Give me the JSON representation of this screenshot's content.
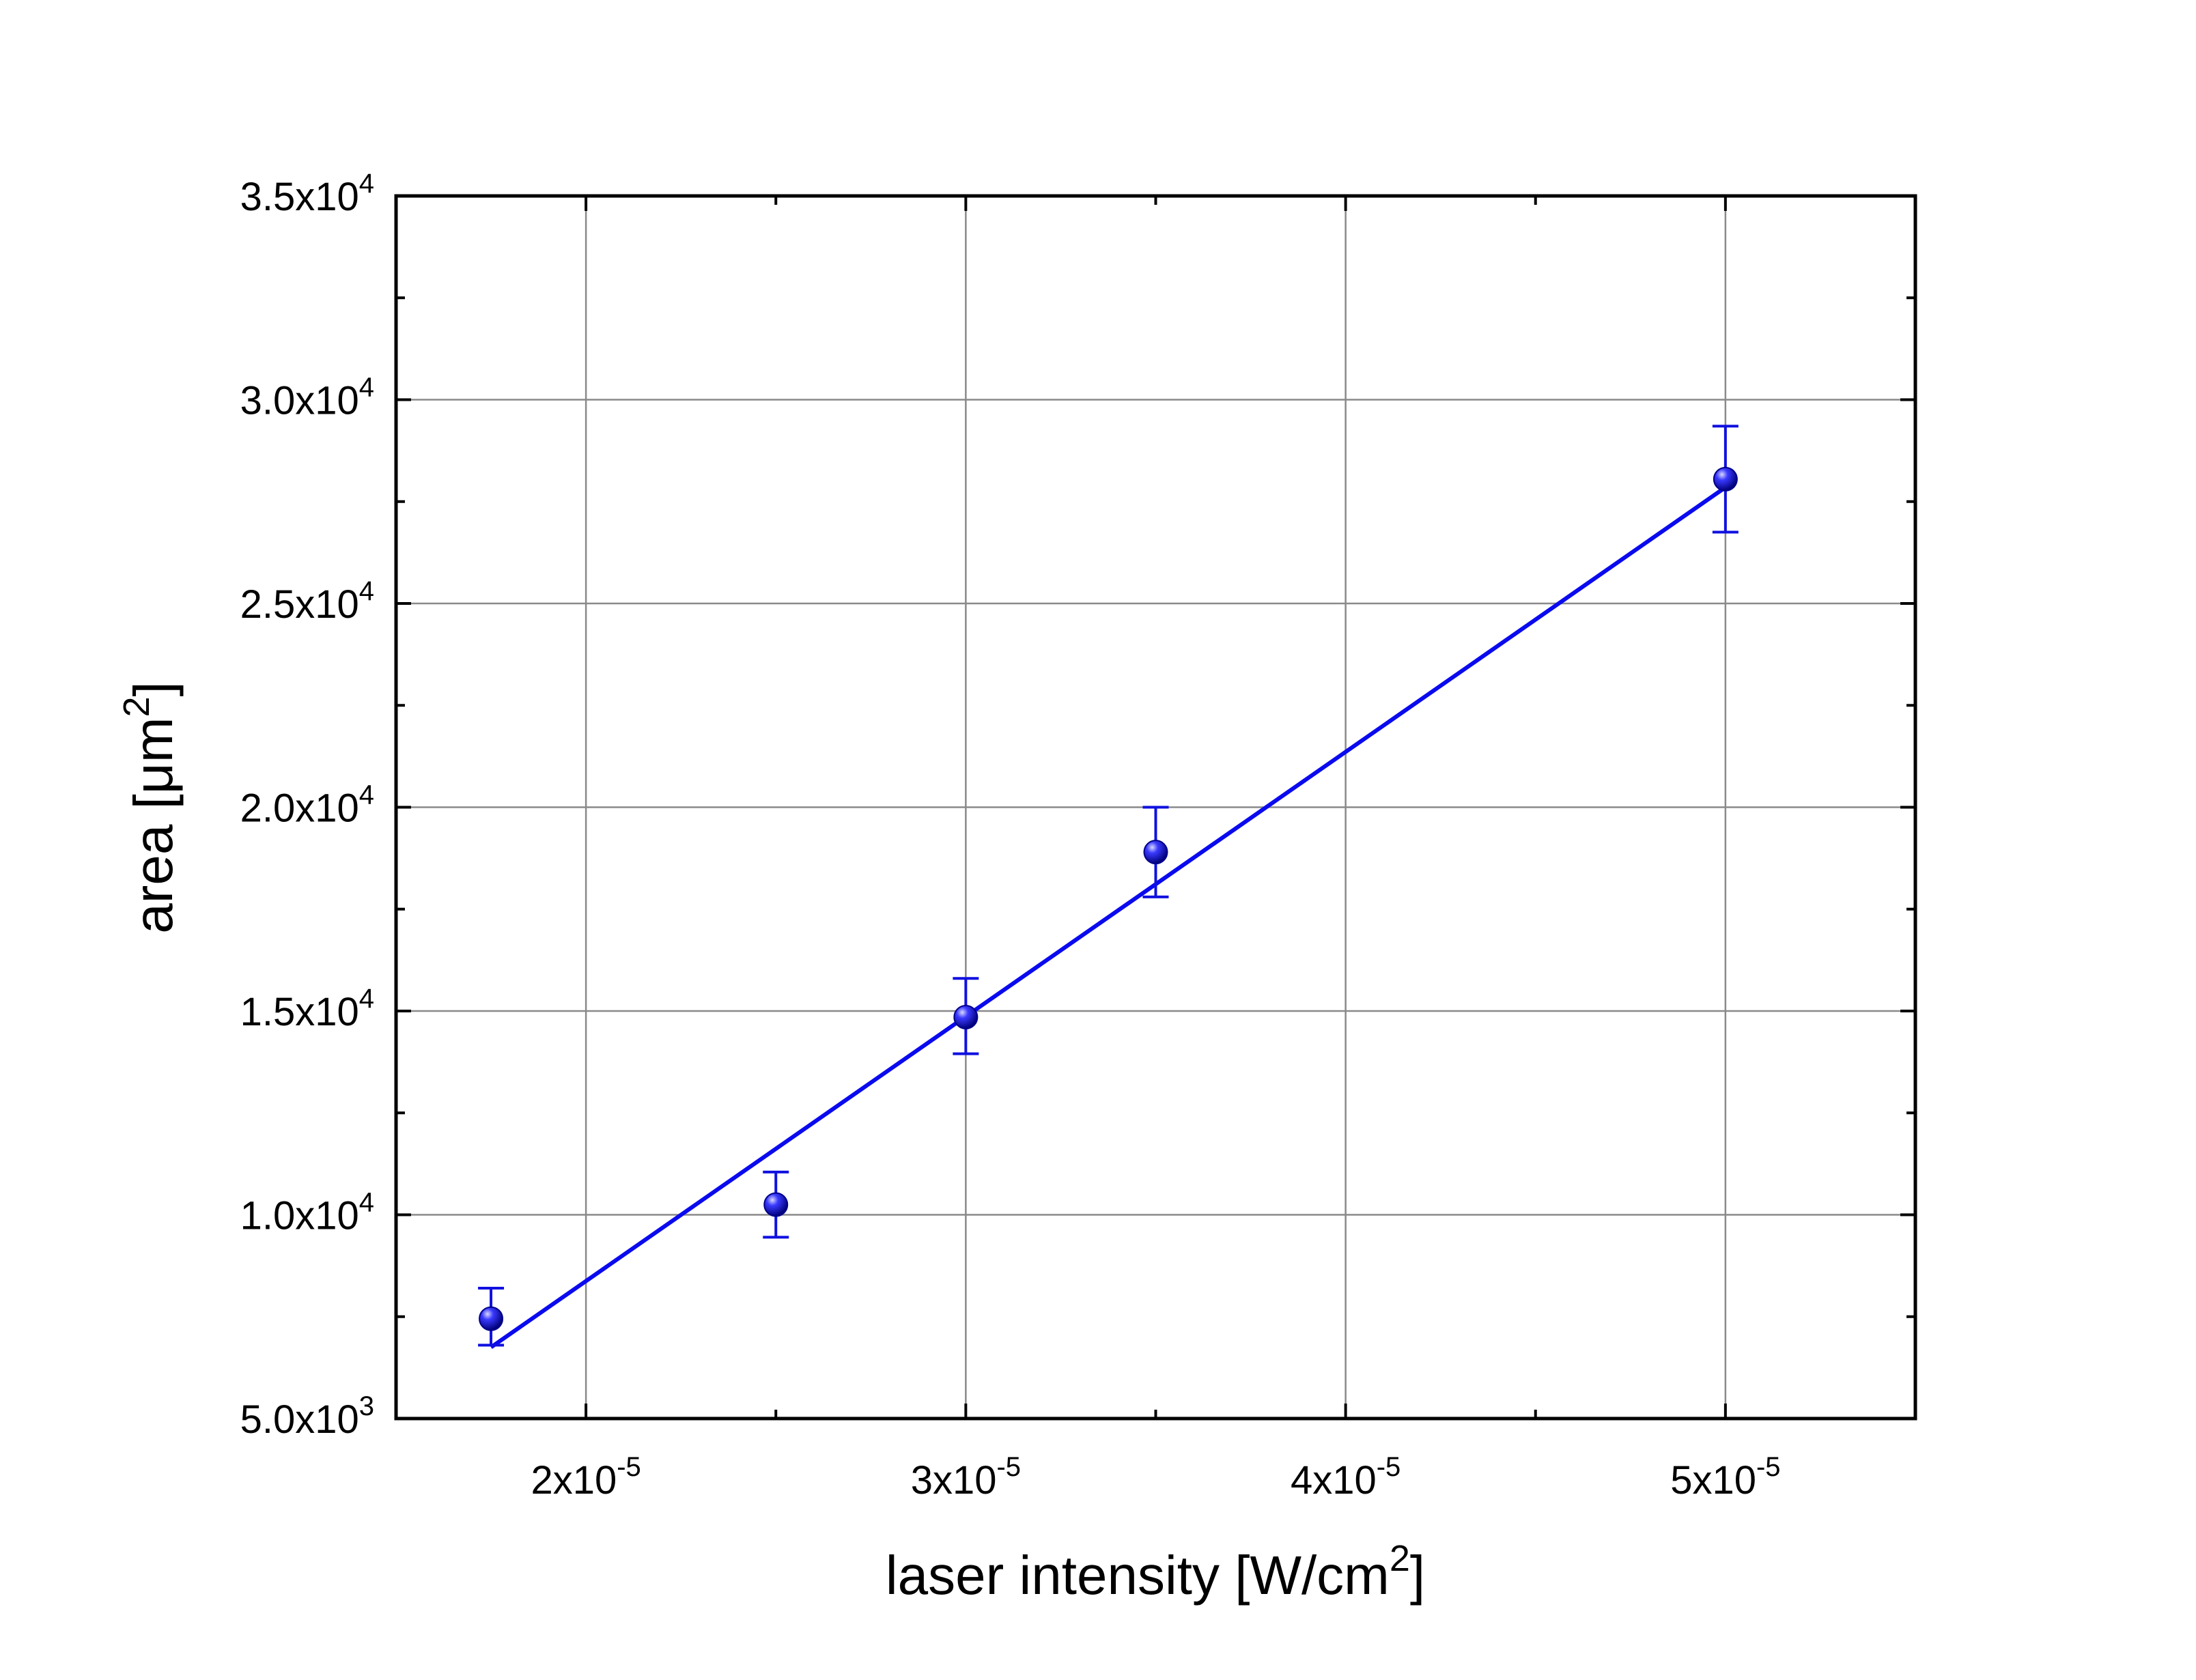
{
  "chart_data": {
    "type": "scatter",
    "xlabel": {
      "main": "laser intensity [W/cm",
      "sup": "2",
      "tail": "]"
    },
    "ylabel": {
      "main": "area [μm",
      "sup": "2",
      "tail": "]"
    },
    "xlim": [
      1.5e-05,
      5.5e-05
    ],
    "ylim": [
      5000,
      35000
    ],
    "x_ticks": [
      {
        "value": 2e-05,
        "mantissa": "2x10",
        "exp": "-5"
      },
      {
        "value": 3e-05,
        "mantissa": "3x10",
        "exp": "-5"
      },
      {
        "value": 4e-05,
        "mantissa": "4x10",
        "exp": "-5"
      },
      {
        "value": 5e-05,
        "mantissa": "5x10",
        "exp": "-5"
      }
    ],
    "y_ticks": [
      {
        "value": 5000,
        "mantissa": "5.0x10",
        "exp": "3"
      },
      {
        "value": 10000,
        "mantissa": "1.0x10",
        "exp": "4"
      },
      {
        "value": 15000,
        "mantissa": "1.5x10",
        "exp": "4"
      },
      {
        "value": 20000,
        "mantissa": "2.0x10",
        "exp": "4"
      },
      {
        "value": 25000,
        "mantissa": "2.5x10",
        "exp": "4"
      },
      {
        "value": 30000,
        "mantissa": "3.0x10",
        "exp": "4"
      },
      {
        "value": 35000,
        "mantissa": "3.5x10",
        "exp": "4"
      }
    ],
    "x_minor_ticks": [
      2.5e-05,
      3.5e-05,
      4.5e-05
    ],
    "y_minor_ticks": [
      7500,
      12500,
      17500,
      22500,
      27500,
      32500
    ],
    "grid": true,
    "series": [
      {
        "color": "#1010e0",
        "marker": "sphere",
        "points": [
          {
            "x": 1.75e-05,
            "y": 7450,
            "err_low": 6800,
            "err_high": 8200
          },
          {
            "x": 2.5e-05,
            "y": 10250,
            "err_low": 9450,
            "err_high": 11050
          },
          {
            "x": 3e-05,
            "y": 14850,
            "err_low": 13950,
            "err_high": 15800
          },
          {
            "x": 3.5e-05,
            "y": 18900,
            "err_low": 17800,
            "err_high": 20000
          },
          {
            "x": 5e-05,
            "y": 28050,
            "err_low": 26750,
            "err_high": 29350
          }
        ]
      }
    ],
    "fit_line": {
      "color": "#0a0aef",
      "x": [
        1.75e-05,
        5e-05
      ],
      "y": [
        6750,
        27850
      ]
    }
  }
}
